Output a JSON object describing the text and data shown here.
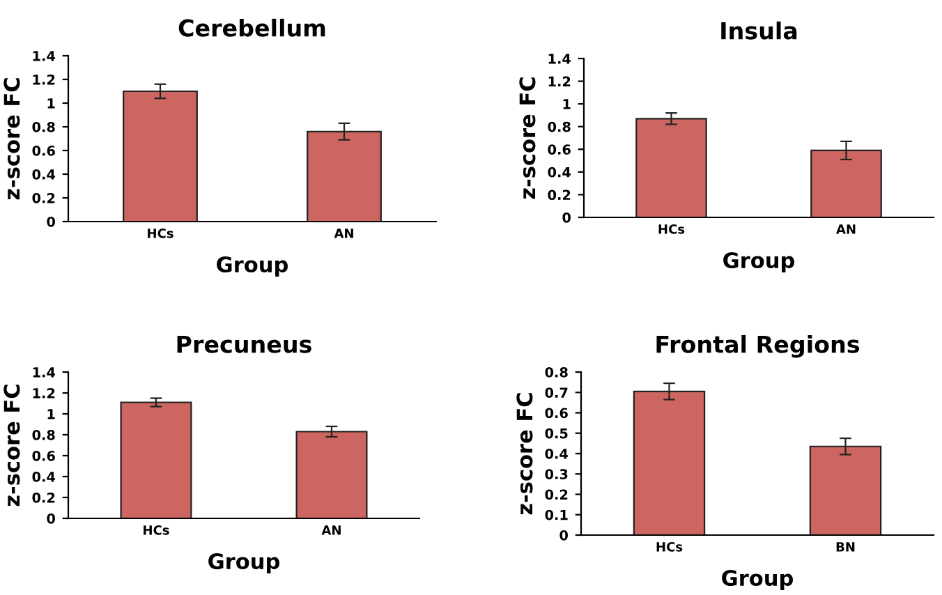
{
  "chart_data": [
    {
      "type": "bar",
      "title": "Cerebellum",
      "xlabel": "Group",
      "ylabel": "z-score FC",
      "categories": [
        "HCs",
        "AN"
      ],
      "values": [
        1.1,
        0.76
      ],
      "errors": [
        0.06,
        0.07
      ],
      "color": "#cd6660",
      "ylim": [
        0,
        1.4
      ],
      "yticks": [
        0,
        0.2,
        0.4,
        0.6,
        0.8,
        1,
        1.2,
        1.4
      ],
      "grid": false,
      "legend": false
    },
    {
      "type": "bar",
      "title": "Insula",
      "xlabel": "Group",
      "ylabel": "z-score FC",
      "categories": [
        "HCs",
        "AN"
      ],
      "values": [
        0.87,
        0.59
      ],
      "errors": [
        0.05,
        0.08
      ],
      "color": "#cd6660",
      "ylim": [
        0,
        1.4
      ],
      "yticks": [
        0,
        0.2,
        0.4,
        0.6,
        0.8,
        1,
        1.2,
        1.4
      ],
      "grid": false,
      "legend": false
    },
    {
      "type": "bar",
      "title": "Precuneus",
      "xlabel": "Group",
      "ylabel": "z-score FC",
      "categories": [
        "HCs",
        "AN"
      ],
      "values": [
        1.11,
        0.83
      ],
      "errors": [
        0.04,
        0.05
      ],
      "color": "#cd6660",
      "ylim": [
        0,
        1.4
      ],
      "yticks": [
        0,
        0.2,
        0.4,
        0.6,
        0.8,
        1,
        1.2,
        1.4
      ],
      "grid": false,
      "legend": false
    },
    {
      "type": "bar",
      "title": "Frontal Regions",
      "xlabel": "Group",
      "ylabel": "z-score FC",
      "categories": [
        "HCs",
        "BN"
      ],
      "values": [
        0.705,
        0.435
      ],
      "errors": [
        0.04,
        0.04
      ],
      "color": "#cd6660",
      "ylim": [
        0,
        0.8
      ],
      "yticks": [
        0,
        0.1,
        0.2,
        0.3,
        0.4,
        0.5,
        0.6,
        0.7,
        0.8
      ],
      "grid": false,
      "legend": false
    }
  ]
}
